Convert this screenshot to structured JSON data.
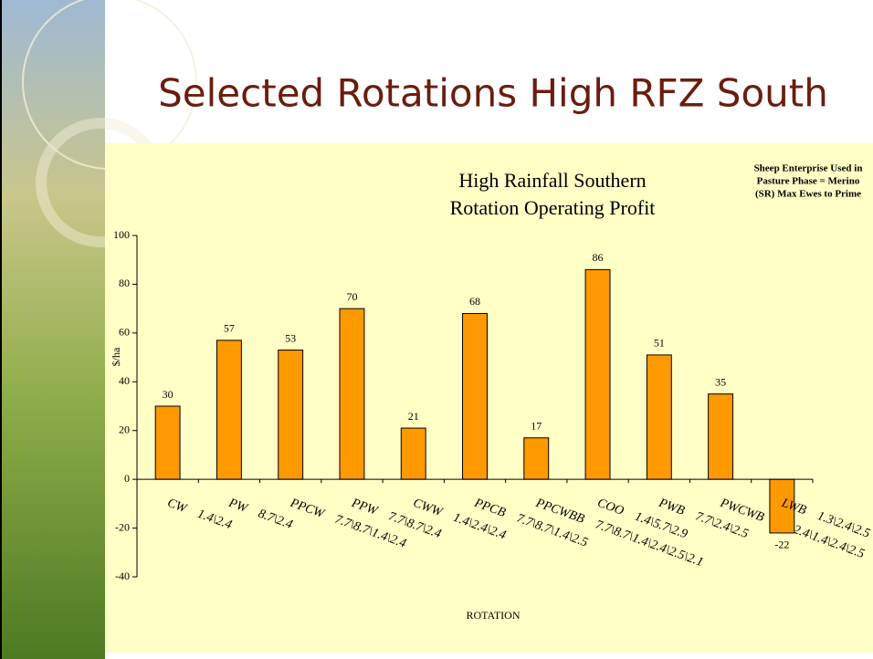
{
  "slide_title": "Selected Rotations High RFZ South",
  "chart_data": {
    "type": "bar",
    "title": [
      "High Rainfall Southern",
      "Rotation Operating Profit"
    ],
    "annotation": [
      "Sheep Enterprise Used in",
      "Pasture Phase = Merino",
      "(SR) Max Ewes to Prime"
    ],
    "x_label": "ROTATION",
    "y_label": "$/ha",
    "categories": [
      "CW    1.4\\2.4",
      "PW    8.7\\2.4",
      "PPCW    7.7\\8.7\\1.4\\2.4",
      "PPW    7.7\\8.7\\2.4",
      "CWW    1.4\\2.4\\2.4",
      "PPCB    7.7\\8.7\\1.4\\2.5",
      "PPCWBB    7.7\\8.7\\1.4\\2.4\\2.5\\2.1",
      "COO    1.4\\5.7\\2.9",
      "PWB    7.7\\2.4\\2.5",
      "PWCWB    7.7\\2.4\\1.4\\2.4\\2.5",
      "LWB    1.3\\2.4\\2.5"
    ],
    "values": [
      30,
      57,
      53,
      70,
      21,
      68,
      17,
      86,
      51,
      35,
      -22
    ],
    "color": "#ff9900",
    "ylim": [
      -40,
      100
    ],
    "yticks": [
      -40,
      -20,
      0,
      20,
      40,
      60,
      80,
      100
    ],
    "grid": false
  }
}
